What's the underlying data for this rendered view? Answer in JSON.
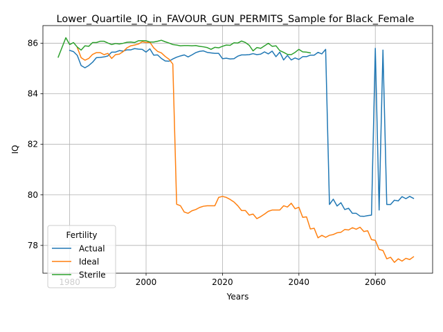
{
  "chart_data": {
    "type": "line",
    "title": "Lower_Quartile_IQ_in_FAVOUR_GUN_PERMITS_Sample for Black_Female",
    "xlabel": "Years",
    "ylabel": "IQ",
    "xlim": [
      1973,
      2075
    ],
    "ylim": [
      76.9,
      86.7
    ],
    "xticks": [
      1980,
      2000,
      2020,
      2040,
      2060
    ],
    "yticks": [
      78,
      80,
      82,
      84,
      86
    ],
    "grid": true,
    "legend": {
      "title": "Fertility",
      "placement": "lower-left"
    },
    "series": [
      {
        "name": "Actual",
        "color": "#1f77b4",
        "points": [
          [
            1980,
            85.72
          ],
          [
            1981,
            85.67
          ],
          [
            1982,
            85.52
          ],
          [
            1983,
            85.12
          ],
          [
            1984,
            85.03
          ],
          [
            1985,
            85.12
          ],
          [
            1986,
            85.25
          ],
          [
            1987,
            85.43
          ],
          [
            1988,
            85.44
          ],
          [
            1989,
            85.46
          ],
          [
            1990,
            85.5
          ],
          [
            1991,
            85.65
          ],
          [
            1992,
            85.65
          ],
          [
            1993,
            85.71
          ],
          [
            1994,
            85.69
          ],
          [
            1995,
            85.74
          ],
          [
            1996,
            85.74
          ],
          [
            1997,
            85.79
          ],
          [
            1998,
            85.77
          ],
          [
            1999,
            85.76
          ],
          [
            2000,
            85.65
          ],
          [
            2001,
            85.78
          ],
          [
            2002,
            85.53
          ],
          [
            2003,
            85.54
          ],
          [
            2004,
            85.4
          ],
          [
            2005,
            85.3
          ],
          [
            2006,
            85.29
          ],
          [
            2007,
            85.38
          ],
          [
            2008,
            85.45
          ],
          [
            2009,
            85.5
          ],
          [
            2010,
            85.54
          ],
          [
            2011,
            85.46
          ],
          [
            2012,
            85.54
          ],
          [
            2013,
            85.63
          ],
          [
            2014,
            85.68
          ],
          [
            2015,
            85.7
          ],
          [
            2016,
            85.64
          ],
          [
            2017,
            85.62
          ],
          [
            2018,
            85.6
          ],
          [
            2019,
            85.6
          ],
          [
            2020,
            85.39
          ],
          [
            2021,
            85.41
          ],
          [
            2022,
            85.38
          ],
          [
            2023,
            85.39
          ],
          [
            2024,
            85.49
          ],
          [
            2025,
            85.54
          ],
          [
            2026,
            85.54
          ],
          [
            2027,
            85.55
          ],
          [
            2028,
            85.59
          ],
          [
            2029,
            85.55
          ],
          [
            2030,
            85.57
          ],
          [
            2031,
            85.66
          ],
          [
            2032,
            85.58
          ],
          [
            2033,
            85.69
          ],
          [
            2034,
            85.47
          ],
          [
            2035,
            85.65
          ],
          [
            2036,
            85.34
          ],
          [
            2037,
            85.52
          ],
          [
            2038,
            85.34
          ],
          [
            2039,
            85.42
          ],
          [
            2040,
            85.36
          ],
          [
            2041,
            85.47
          ],
          [
            2042,
            85.47
          ],
          [
            2043,
            85.53
          ],
          [
            2044,
            85.53
          ],
          [
            2045,
            85.64
          ],
          [
            2046,
            85.58
          ],
          [
            2047,
            85.76
          ],
          [
            2048,
            79.62
          ],
          [
            2049,
            79.83
          ],
          [
            2050,
            79.56
          ],
          [
            2051,
            79.69
          ],
          [
            2052,
            79.42
          ],
          [
            2053,
            79.47
          ],
          [
            2054,
            79.27
          ],
          [
            2055,
            79.27
          ],
          [
            2056,
            79.16
          ],
          [
            2057,
            79.15
          ],
          [
            2058,
            79.18
          ],
          [
            2059,
            79.2
          ],
          [
            2060,
            85.8
          ],
          [
            2061,
            79.4
          ],
          [
            2062,
            85.73
          ],
          [
            2063,
            79.62
          ],
          [
            2064,
            79.62
          ],
          [
            2065,
            79.79
          ],
          [
            2066,
            79.76
          ],
          [
            2067,
            79.93
          ],
          [
            2068,
            79.85
          ],
          [
            2069,
            79.94
          ],
          [
            2070,
            79.86
          ]
        ]
      },
      {
        "name": "Ideal",
        "color": "#ff7f0e",
        "points": [
          [
            1982,
            85.83
          ],
          [
            1983,
            85.43
          ],
          [
            1984,
            85.33
          ],
          [
            1985,
            85.4
          ],
          [
            1986,
            85.56
          ],
          [
            1987,
            85.63
          ],
          [
            1988,
            85.63
          ],
          [
            1989,
            85.55
          ],
          [
            1990,
            85.6
          ],
          [
            1991,
            85.4
          ],
          [
            1992,
            85.55
          ],
          [
            1993,
            85.57
          ],
          [
            1994,
            85.67
          ],
          [
            1995,
            85.82
          ],
          [
            1996,
            85.9
          ],
          [
            1997,
            85.93
          ],
          [
            1998,
            85.97
          ],
          [
            1999,
            86.06
          ],
          [
            2000,
            86.03
          ],
          [
            2001,
            86.04
          ],
          [
            2002,
            85.82
          ],
          [
            2003,
            85.68
          ],
          [
            2004,
            85.62
          ],
          [
            2005,
            85.48
          ],
          [
            2006,
            85.37
          ],
          [
            2007,
            85.18
          ],
          [
            2008,
            79.63
          ],
          [
            2009,
            79.57
          ],
          [
            2010,
            79.32
          ],
          [
            2011,
            79.27
          ],
          [
            2012,
            79.37
          ],
          [
            2013,
            79.42
          ],
          [
            2014,
            79.5
          ],
          [
            2015,
            79.55
          ],
          [
            2016,
            79.57
          ],
          [
            2017,
            79.57
          ],
          [
            2018,
            79.57
          ],
          [
            2019,
            79.9
          ],
          [
            2020,
            79.94
          ],
          [
            2021,
            79.9
          ],
          [
            2022,
            79.82
          ],
          [
            2023,
            79.72
          ],
          [
            2024,
            79.57
          ],
          [
            2025,
            79.38
          ],
          [
            2026,
            79.38
          ],
          [
            2027,
            79.2
          ],
          [
            2028,
            79.24
          ],
          [
            2029,
            79.06
          ],
          [
            2030,
            79.14
          ],
          [
            2031,
            79.24
          ],
          [
            2032,
            79.35
          ],
          [
            2033,
            79.4
          ],
          [
            2034,
            79.4
          ],
          [
            2035,
            79.4
          ],
          [
            2036,
            79.57
          ],
          [
            2037,
            79.52
          ],
          [
            2038,
            79.67
          ],
          [
            2039,
            79.45
          ],
          [
            2040,
            79.51
          ],
          [
            2041,
            79.11
          ],
          [
            2042,
            79.13
          ],
          [
            2043,
            78.65
          ],
          [
            2044,
            78.68
          ],
          [
            2045,
            78.3
          ],
          [
            2046,
            78.4
          ],
          [
            2047,
            78.32
          ],
          [
            2048,
            78.4
          ],
          [
            2049,
            78.43
          ],
          [
            2050,
            78.5
          ],
          [
            2051,
            78.52
          ],
          [
            2052,
            78.63
          ],
          [
            2053,
            78.61
          ],
          [
            2054,
            78.7
          ],
          [
            2055,
            78.64
          ],
          [
            2056,
            78.72
          ],
          [
            2057,
            78.55
          ],
          [
            2058,
            78.58
          ],
          [
            2059,
            78.23
          ],
          [
            2060,
            78.2
          ],
          [
            2061,
            77.84
          ],
          [
            2062,
            77.8
          ],
          [
            2063,
            77.47
          ],
          [
            2064,
            77.53
          ],
          [
            2065,
            77.33
          ],
          [
            2066,
            77.47
          ],
          [
            2067,
            77.38
          ],
          [
            2068,
            77.49
          ],
          [
            2069,
            77.44
          ],
          [
            2070,
            77.55
          ]
        ]
      },
      {
        "name": "Sterile",
        "color": "#2ca02c",
        "points": [
          [
            1977,
            85.45
          ],
          [
            1979,
            86.22
          ],
          [
            1980,
            85.95
          ],
          [
            1981,
            86.03
          ],
          [
            1982,
            85.85
          ],
          [
            1983,
            85.73
          ],
          [
            1984,
            85.9
          ],
          [
            1985,
            85.88
          ],
          [
            1986,
            86.03
          ],
          [
            1987,
            86.03
          ],
          [
            1988,
            86.08
          ],
          [
            1989,
            86.08
          ],
          [
            1990,
            86.01
          ],
          [
            1991,
            85.95
          ],
          [
            1992,
            85.99
          ],
          [
            1993,
            85.97
          ],
          [
            1994,
            86.0
          ],
          [
            1995,
            86.04
          ],
          [
            1996,
            86.05
          ],
          [
            1997,
            86.03
          ],
          [
            1998,
            86.1
          ],
          [
            1999,
            86.1
          ],
          [
            2000,
            86.1
          ],
          [
            2001,
            86.05
          ],
          [
            2002,
            86.05
          ],
          [
            2003,
            86.08
          ],
          [
            2004,
            86.12
          ],
          [
            2005,
            86.06
          ],
          [
            2006,
            86.01
          ],
          [
            2007,
            85.95
          ],
          [
            2008,
            85.93
          ],
          [
            2009,
            85.9
          ],
          [
            2010,
            85.91
          ],
          [
            2011,
            85.91
          ],
          [
            2012,
            85.9
          ],
          [
            2013,
            85.91
          ],
          [
            2014,
            85.88
          ],
          [
            2015,
            85.86
          ],
          [
            2016,
            85.83
          ],
          [
            2017,
            85.76
          ],
          [
            2018,
            85.84
          ],
          [
            2019,
            85.82
          ],
          [
            2020,
            85.88
          ],
          [
            2021,
            85.93
          ],
          [
            2022,
            85.92
          ],
          [
            2023,
            86.02
          ],
          [
            2024,
            86.01
          ],
          [
            2025,
            86.09
          ],
          [
            2026,
            86.03
          ],
          [
            2027,
            85.92
          ],
          [
            2028,
            85.7
          ],
          [
            2029,
            85.83
          ],
          [
            2030,
            85.8
          ],
          [
            2031,
            85.9
          ],
          [
            2032,
            86.0
          ],
          [
            2033,
            85.88
          ],
          [
            2034,
            85.9
          ],
          [
            2035,
            85.71
          ],
          [
            2036,
            85.64
          ],
          [
            2037,
            85.56
          ],
          [
            2038,
            85.55
          ],
          [
            2039,
            85.64
          ],
          [
            2040,
            85.76
          ],
          [
            2041,
            85.66
          ],
          [
            2042,
            85.65
          ],
          [
            2043,
            85.62
          ]
        ]
      }
    ]
  }
}
